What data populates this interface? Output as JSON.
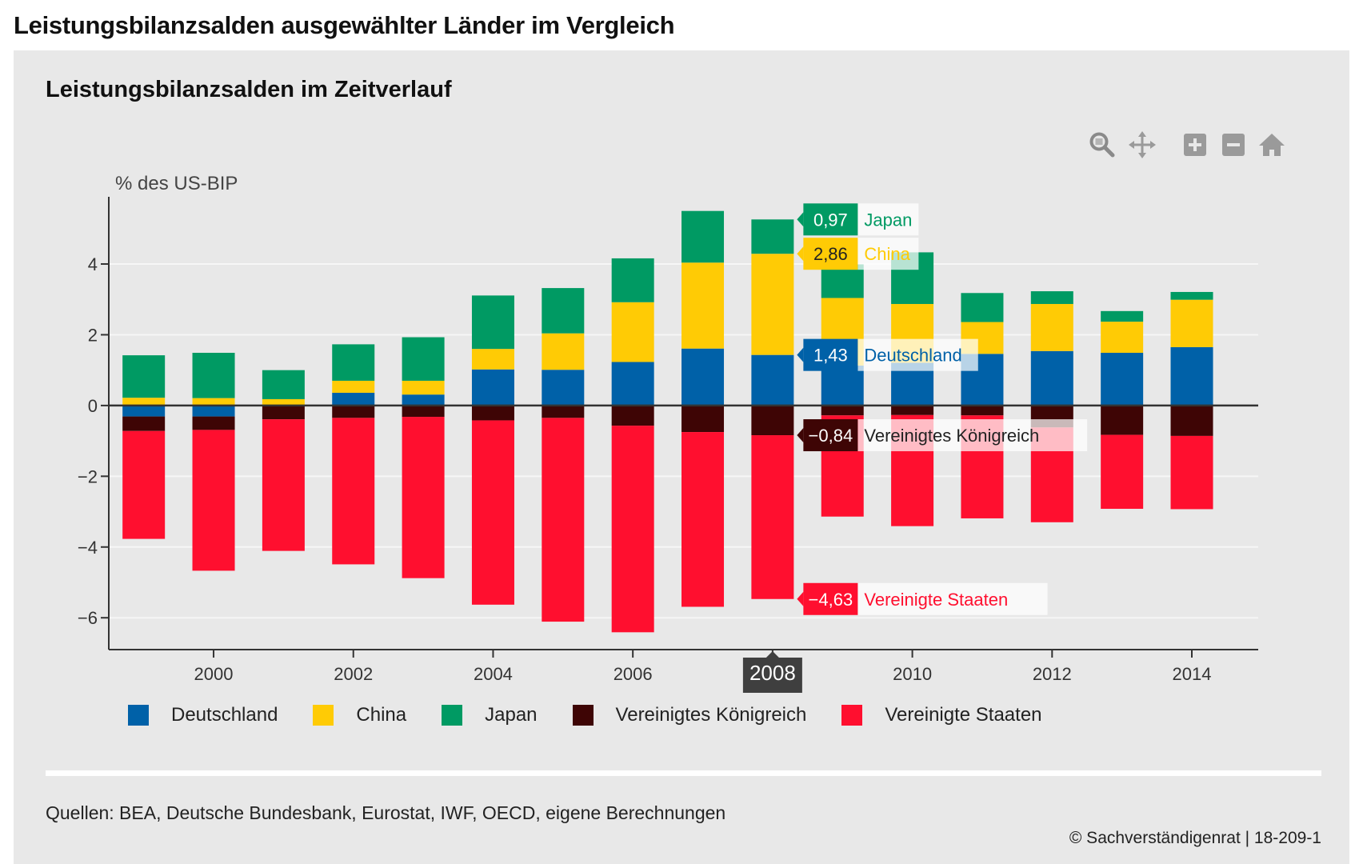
{
  "page": {
    "title": "Leistungsbilanzsalden ausgewählter Länder im Vergleich",
    "sources": "Quellen: BEA, Deutsche Bundesbank, Eurostat, IWF, OECD, eigene Berechnungen",
    "copyright": "© Sachverständigenrat | 18-209-1"
  },
  "toolbar": {
    "icons": [
      "zoom-icon",
      "pan-icon",
      "zoom-in-icon",
      "zoom-out-icon",
      "home-icon"
    ]
  },
  "tooltip": {
    "year": "2008",
    "entries": [
      {
        "series": "Japan",
        "value": "0,97"
      },
      {
        "series": "China",
        "value": "2,86"
      },
      {
        "series": "Deutschland",
        "value": "1,43"
      },
      {
        "series": "Vereinigtes Königreich",
        "value": "−0,84"
      },
      {
        "series": "Vereinigte Staaten",
        "value": "−4,63"
      }
    ]
  },
  "chart_data": {
    "type": "bar",
    "stacked": true,
    "title": "Leistungsbilanzsalden im Zeitverlauf",
    "ylabel": "% des US-BIP",
    "xlabel": "",
    "ylim": [
      -6.9,
      5.9
    ],
    "yticks": [
      -6,
      -4,
      -2,
      0,
      2,
      4
    ],
    "ytick_labels": [
      "−6",
      "−4",
      "−2",
      "0",
      "2",
      "4"
    ],
    "xticks": [
      2000,
      2002,
      2004,
      2006,
      2008,
      2010,
      2012,
      2014
    ],
    "grid": "horizontal",
    "legend_position": "bottom",
    "categories": [
      1999,
      2000,
      2001,
      2002,
      2003,
      2004,
      2005,
      2006,
      2007,
      2008,
      2009,
      2010,
      2011,
      2012,
      2013,
      2014
    ],
    "series": [
      {
        "name": "Deutschland",
        "color": "#0061a8",
        "values": [
          -0.31,
          -0.31,
          0.01,
          0.36,
          0.31,
          1.02,
          1.01,
          1.23,
          1.61,
          1.43,
          1.13,
          1.21,
          1.46,
          1.54,
          1.49,
          1.65
        ]
      },
      {
        "name": "China",
        "color": "#ffcb05",
        "values": [
          0.22,
          0.21,
          0.17,
          0.34,
          0.39,
          0.58,
          1.03,
          1.69,
          2.43,
          2.86,
          1.91,
          1.66,
          0.9,
          1.33,
          0.88,
          1.34
        ]
      },
      {
        "name": "Japan",
        "color": "#009a63",
        "values": [
          1.2,
          1.28,
          0.82,
          1.03,
          1.23,
          1.51,
          1.28,
          1.24,
          1.46,
          0.97,
          0.95,
          1.46,
          0.82,
          0.36,
          0.3,
          0.22
        ]
      },
      {
        "name": "Vereinigtes Königreich",
        "color": "#3e0505",
        "values": [
          -0.41,
          -0.38,
          -0.39,
          -0.35,
          -0.32,
          -0.42,
          -0.35,
          -0.57,
          -0.75,
          -0.84,
          -0.28,
          -0.27,
          -0.28,
          -0.62,
          -0.83,
          -0.86
        ]
      },
      {
        "name": "Vereinigte Staaten",
        "color": "#ff0f2f",
        "values": [
          -3.05,
          -3.98,
          -3.72,
          -4.14,
          -4.56,
          -5.21,
          -5.76,
          -5.84,
          -4.94,
          -4.63,
          -2.86,
          -3.14,
          -2.91,
          -2.68,
          -2.09,
          -2.07
        ]
      }
    ]
  }
}
